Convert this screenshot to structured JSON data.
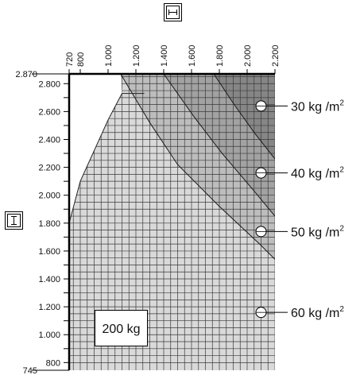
{
  "chart_data": {
    "type": "area",
    "title": "",
    "xlabel": "",
    "ylabel": "",
    "x_unit": "mm",
    "y_unit": "mm",
    "xlim": [
      720,
      2200
    ],
    "ylim": [
      745,
      2870
    ],
    "x_ticks": [
      {
        "value": 720,
        "label": "720"
      },
      {
        "value": 800,
        "label": "800"
      },
      {
        "value": 1000,
        "label": "1.000"
      },
      {
        "value": 1200,
        "label": "1.200"
      },
      {
        "value": 1400,
        "label": "1.400"
      },
      {
        "value": 1600,
        "label": "1.600"
      },
      {
        "value": 1800,
        "label": "1.800"
      },
      {
        "value": 2000,
        "label": "2.000"
      },
      {
        "value": 2200,
        "label": "2.200"
      }
    ],
    "y_ticks": [
      {
        "value": 2870,
        "label": "2.870"
      },
      {
        "value": 2800,
        "label": "2.800"
      },
      {
        "value": 2600,
        "label": "2.600"
      },
      {
        "value": 2400,
        "label": "2.400"
      },
      {
        "value": 2200,
        "label": "2.200"
      },
      {
        "value": 2000,
        "label": "2.000"
      },
      {
        "value": 1800,
        "label": "1.800"
      },
      {
        "value": 1600,
        "label": "1.600"
      },
      {
        "value": 1400,
        "label": "1.400"
      },
      {
        "value": 1200,
        "label": "1.200"
      },
      {
        "value": 1000,
        "label": "1.000"
      },
      {
        "value": 800,
        "label": "800"
      },
      {
        "value": 745,
        "label": "745"
      }
    ],
    "grid": true,
    "zones": [
      {
        "name": "60 kg /m",
        "sup": "2",
        "color": "#d9d9d9",
        "marker_y": 1160
      },
      {
        "name": "50 kg /m",
        "sup": "2",
        "color": "#bdbdbd",
        "marker_y": 1740
      },
      {
        "name": "40 kg /m",
        "sup": "2",
        "color": "#a2a2a2",
        "marker_y": 2160
      },
      {
        "name": "30 kg /m",
        "sup": "2",
        "color": "#868686",
        "marker_y": 2640
      }
    ],
    "boundaries": [
      {
        "points": [
          [
            1090,
            2870
          ],
          [
            1300,
            2520
          ],
          [
            1500,
            2220
          ],
          [
            1800,
            1920
          ],
          [
            2100,
            1640
          ],
          [
            2200,
            1540
          ]
        ]
      },
      {
        "points": [
          [
            1400,
            2870
          ],
          [
            1620,
            2560
          ],
          [
            1820,
            2300
          ],
          [
            2050,
            2030
          ],
          [
            2200,
            1850
          ]
        ]
      },
      {
        "points": [
          [
            1760,
            2870
          ],
          [
            1900,
            2660
          ],
          [
            2050,
            2450
          ],
          [
            2200,
            2260
          ]
        ]
      }
    ],
    "envelope": [
      [
        720,
        1800
      ],
      [
        800,
        2100
      ],
      [
        1000,
        2540
      ],
      [
        1100,
        2730
      ],
      [
        1260,
        2730
      ],
      [
        1400,
        2360
      ],
      [
        1600,
        2040
      ],
      [
        1800,
        1820
      ],
      [
        2200,
        1460
      ]
    ],
    "load_label": "200 kg",
    "icons": {
      "width_icon": "width-arrows-icon",
      "height_icon": "height-arrows-icon"
    }
  }
}
